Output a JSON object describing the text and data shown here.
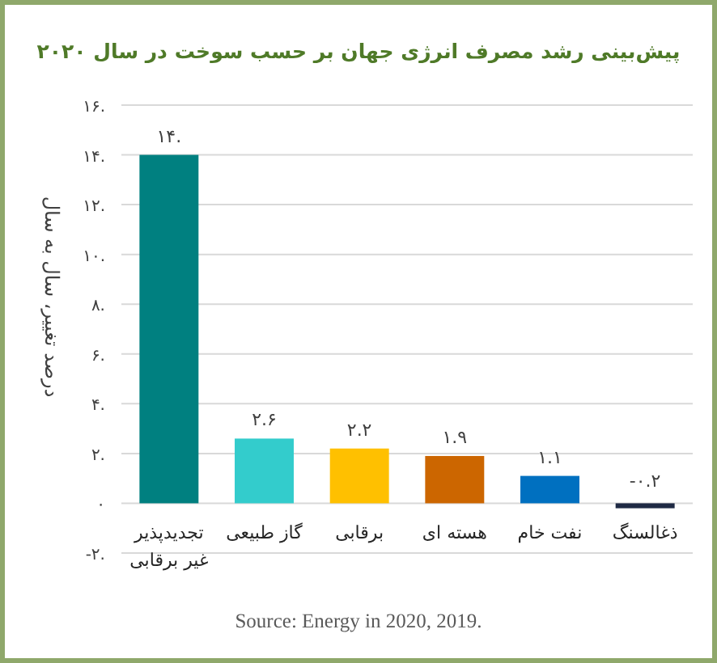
{
  "chart_data": {
    "type": "bar",
    "title": "پیش‌بینی رشد مصرف انرژی جهان بر حسب سوخت در سال ۲۰۲۰",
    "ylabel": "درصد تغییر، سال به سال",
    "categories": [
      "تجدیدپذیر\nغیر برقابی",
      "گاز طبیعی",
      "برقابی",
      "هسته ای",
      "نفت خام",
      "ذغالسنگ"
    ],
    "values": [
      14,
      2.6,
      2.2,
      1.9,
      1.1,
      -0.2
    ],
    "colors": [
      "#008080",
      "#33cccc",
      "#ffc000",
      "#cc6600",
      "#0070c0",
      "#1f2a44"
    ],
    "value_labels": [
      "۱۴.",
      "۲.۶",
      "۲.۲",
      "۱.۹",
      "۱.۱",
      "-۰.۲"
    ],
    "ylim": [
      -2,
      16
    ],
    "yticks": [
      {
        "value": -2,
        "label": "-۲."
      },
      {
        "value": 0,
        "label": "۰"
      },
      {
        "value": 2,
        "label": "۲."
      },
      {
        "value": 4,
        "label": "۴."
      },
      {
        "value": 6,
        "label": "۶."
      },
      {
        "value": 8,
        "label": "۸."
      },
      {
        "value": 10,
        "label": "۱۰."
      },
      {
        "value": 12,
        "label": "۱۲."
      },
      {
        "value": 14,
        "label": "۱۴."
      },
      {
        "value": 16,
        "label": "۱۶."
      }
    ],
    "grid": "y",
    "annotations": [
      "Source: Energy in 2020, 2019."
    ]
  }
}
